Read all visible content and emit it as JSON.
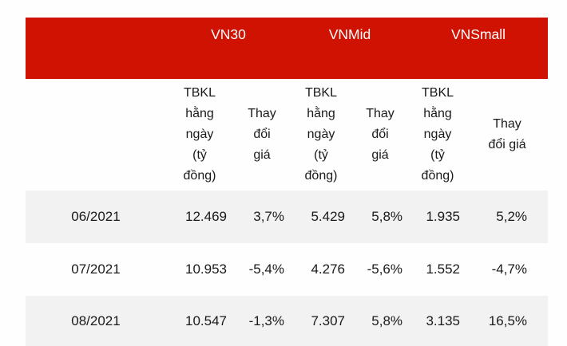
{
  "table": {
    "groups": [
      {
        "label": "VN30"
      },
      {
        "label": "VNMid"
      },
      {
        "label": "VNSmall"
      }
    ],
    "subheaders": [
      "TBKL\nhằng\nngày\n(tỷ\nđồng)",
      "Thay\nđổi\ngiá",
      "TBKL\nhằng\nngày\n(tỷ\nđồng)",
      "Thay\nđổi\ngiá",
      "TBKL\nhằng\nngày\n(tỷ\nđồng)",
      "Thay\nđổi giá"
    ],
    "rows": [
      {
        "month": "06/2021",
        "values": [
          "12.469",
          "3,7%",
          "5.429",
          "5,8%",
          "1.935",
          "5,2%"
        ]
      },
      {
        "month": "07/2021",
        "values": [
          "10.953",
          "-5,4%",
          "4.276",
          "-5,6%",
          "1.552",
          "-4,7%"
        ]
      },
      {
        "month": "08/2021",
        "values": [
          "10.547",
          "-1,3%",
          "7.307",
          "5,8%",
          "3.135",
          "16,5%"
        ]
      }
    ],
    "colors": {
      "header_bg": "#d01202",
      "header_text": "#ffffff",
      "row_alt_bg": "#f2f2f2",
      "text": "#1a1a1a"
    }
  }
}
